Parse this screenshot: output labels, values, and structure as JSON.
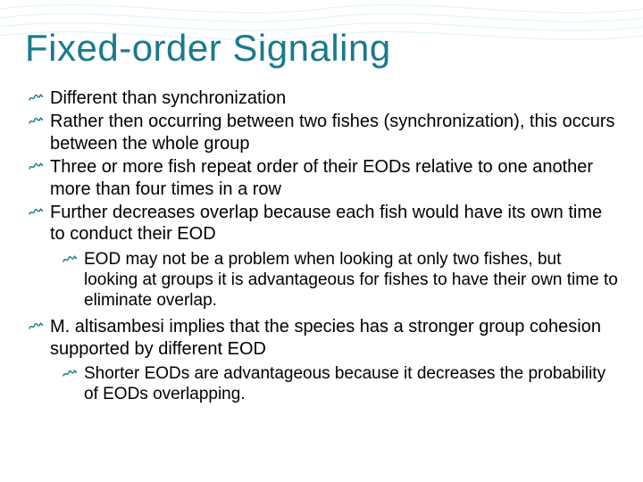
{
  "colors": {
    "title": "#1a7a8c",
    "text": "#000000",
    "bullet": "#1a7a8c",
    "wave": "#7fcad6",
    "background": "#ffffff"
  },
  "title_fontsize": 42,
  "body_fontsize_lvl1": 20,
  "body_fontsize_lvl2": 19,
  "title": "Fixed-order Signaling",
  "bullets": [
    {
      "level": 1,
      "text": "Different than synchronization"
    },
    {
      "level": 1,
      "text": "Rather then occurring between two fishes (synchronization), this occurs between the whole group"
    },
    {
      "level": 1,
      "text": "Three or more fish repeat order of their EODs relative to one another more than four times in a row"
    },
    {
      "level": 1,
      "text": "Further decreases overlap because each fish would have its own time to conduct their EOD"
    },
    {
      "level": 2,
      "text": "EOD may not be a problem when looking at only two fishes, but looking at groups it is advantageous for fishes to have their own time to eliminate overlap."
    },
    {
      "level": 1,
      "text": "M. altisambesi implies that the species has a stronger group cohesion supported by different EOD"
    },
    {
      "level": 2,
      "text": "Shorter EODs are advantageous because it decreases the probability of EODs overlapping."
    }
  ]
}
